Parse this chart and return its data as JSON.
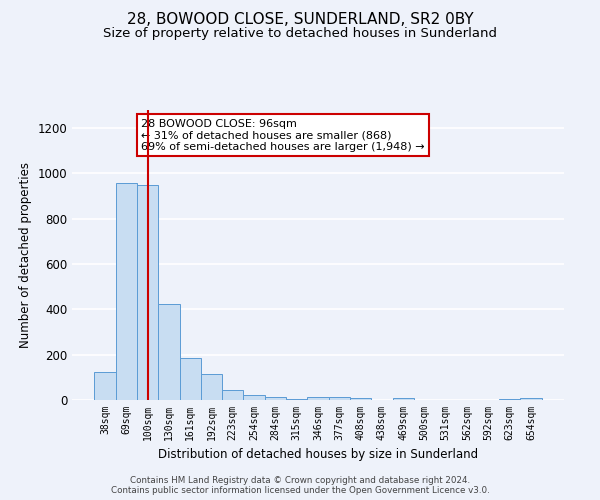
{
  "title1": "28, BOWOOD CLOSE, SUNDERLAND, SR2 0BY",
  "title2": "Size of property relative to detached houses in Sunderland",
  "xlabel": "Distribution of detached houses by size in Sunderland",
  "ylabel": "Number of detached properties",
  "categories": [
    "38sqm",
    "69sqm",
    "100sqm",
    "130sqm",
    "161sqm",
    "192sqm",
    "223sqm",
    "254sqm",
    "284sqm",
    "315sqm",
    "346sqm",
    "377sqm",
    "408sqm",
    "438sqm",
    "469sqm",
    "500sqm",
    "531sqm",
    "562sqm",
    "592sqm",
    "623sqm",
    "654sqm"
  ],
  "values": [
    125,
    960,
    950,
    425,
    185,
    115,
    42,
    20,
    15,
    5,
    13,
    13,
    10,
    2,
    10,
    2,
    1,
    0,
    0,
    5,
    10
  ],
  "bar_color": "#c8ddf2",
  "bar_edge_color": "#5b9bd5",
  "vline_x_index": 2,
  "vline_color": "#cc0000",
  "annotation_text": "28 BOWOOD CLOSE: 96sqm\n← 31% of detached houses are smaller (868)\n69% of semi-detached houses are larger (1,948) →",
  "annotation_box_color": "#ffffff",
  "annotation_box_edge": "#cc0000",
  "ylim": [
    0,
    1280
  ],
  "yticks": [
    0,
    200,
    400,
    600,
    800,
    1000,
    1200
  ],
  "footer1": "Contains HM Land Registry data © Crown copyright and database right 2024.",
  "footer2": "Contains public sector information licensed under the Open Government Licence v3.0.",
  "bg_color": "#eef2fa",
  "grid_color": "#ffffff",
  "title1_fontsize": 11,
  "title2_fontsize": 9.5
}
